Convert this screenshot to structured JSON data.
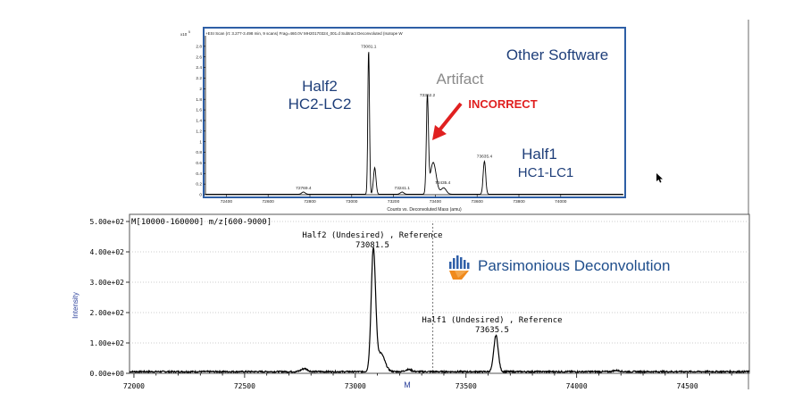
{
  "inset": {
    "header": "+ESI Scan (rt: 3.277-3.498 min, 9 scans) Frag=460.0V MH20170324_001.d  Subtract Deconvoluted (Isotope W",
    "y_multiplier": "x10",
    "y_multiplier_exp": "5",
    "x_title": "Counts vs. Deconvoluted Mass (amu)",
    "software_label": "Other Software",
    "half2_line1": "Half2",
    "half2_line2": "HC2-LC2",
    "artifact_label": "Artifact",
    "incorrect_label": "INCORRECT",
    "half1_line1": "Half1",
    "half1_line2": "HC1-LC1",
    "colors": {
      "frame": "#2e5fa6",
      "title": "#1f3f7a",
      "artifact": "#8a8a8a",
      "incorrect": "#e02020"
    }
  },
  "main": {
    "method_label": "M[10000-160000] m/z[600-9000]",
    "y_title": "Intensity",
    "x_title": "M",
    "brand_label": "Parsimonious Deconvolution",
    "half2_annot": "Half2 (Undesired) , Reference",
    "half2_mass": "73081.5",
    "half1_annot": "Half1 (Undesired) , Reference",
    "half1_mass": "73635.5",
    "colors": {
      "brand_text": "#1f4e8c",
      "logo_blue": "#2f5fa8",
      "logo_orange": "#f08a1c"
    }
  },
  "chart_data": [
    {
      "type": "line",
      "name_ref": "inset",
      "xlim": [
        72300,
        74300
      ],
      "ylim": [
        0,
        3.0
      ],
      "x_ticks": [
        72400,
        72600,
        72800,
        73000,
        73200,
        73400,
        73600,
        73800,
        74000
      ],
      "x_tick_labels": [
        "72400",
        "72600",
        "72800",
        "73000",
        "73200",
        "73400",
        "73600",
        "73800",
        "74000"
      ],
      "y_ticks": [
        0,
        0.2,
        0.4,
        0.6,
        0.8,
        1,
        1.2,
        1.4,
        1.6,
        1.8,
        2,
        2.2,
        2.4,
        2.6,
        2.8
      ],
      "y_tick_labels": [
        "0",
        "0.2",
        "0.4",
        "0.6",
        "0.8",
        "1",
        "1.2",
        "1.4",
        "1.6",
        "1.8",
        "2",
        "2.2",
        "2.4",
        "2.6",
        "2.8"
      ],
      "peak_labels": [
        {
          "x": 72769.4,
          "y": 0.05,
          "text": "72769.4"
        },
        {
          "x": 73081.1,
          "y": 2.72,
          "text": "73081.1"
        },
        {
          "x": 73241.1,
          "y": 0.05,
          "text": "73241.1"
        },
        {
          "x": 73362.2,
          "y": 1.8,
          "text": "73362.2"
        },
        {
          "x": 73435.4,
          "y": 0.15,
          "text": "73435.4"
        },
        {
          "x": 73635.4,
          "y": 0.65,
          "text": "73635.4"
        }
      ],
      "peaks": [
        {
          "center": 73081,
          "height": 2.72,
          "sigma": 4,
          "tail": 0
        },
        {
          "center": 73110,
          "height": 0.5,
          "sigma": 6,
          "tail": 0
        },
        {
          "center": 73362,
          "height": 1.8,
          "sigma": 5,
          "tail": 0
        },
        {
          "center": 73390,
          "height": 0.6,
          "sigma": 14,
          "tail": 0
        },
        {
          "center": 73440,
          "height": 0.12,
          "sigma": 12,
          "tail": 0
        },
        {
          "center": 73635,
          "height": 0.62,
          "sigma": 6,
          "tail": 0
        },
        {
          "center": 72769,
          "height": 0.04,
          "sigma": 8,
          "tail": 0
        },
        {
          "center": 73241,
          "height": 0.04,
          "sigma": 8,
          "tail": 0
        }
      ]
    },
    {
      "type": "line",
      "name_ref": "main",
      "xlim": [
        71980,
        74780
      ],
      "ylim": [
        0,
        500
      ],
      "x_ticks": [
        72000,
        72500,
        73000,
        73500,
        74000,
        74500
      ],
      "x_tick_labels": [
        "72000",
        "72500",
        "73000",
        "73500",
        "74000",
        "74500"
      ],
      "y_ticks": [
        0,
        100,
        200,
        300,
        400,
        500
      ],
      "y_tick_labels": [
        "0.00e+00",
        "1.00e+02",
        "2.00e+02",
        "3.00e+02",
        "4.00e+02",
        "5.00e+02"
      ],
      "grid": "horizontal-dotted",
      "cursor_x": 73350,
      "peaks": [
        {
          "center": 73081.5,
          "height": 398,
          "sigma": 10
        },
        {
          "center": 73115,
          "height": 60,
          "sigma": 18
        },
        {
          "center": 73635.5,
          "height": 120,
          "sigma": 10
        },
        {
          "center": 72770,
          "height": 10,
          "sigma": 14
        },
        {
          "center": 73240,
          "height": 7,
          "sigma": 14
        },
        {
          "center": 74180,
          "height": 4,
          "sigma": 14
        }
      ]
    }
  ]
}
